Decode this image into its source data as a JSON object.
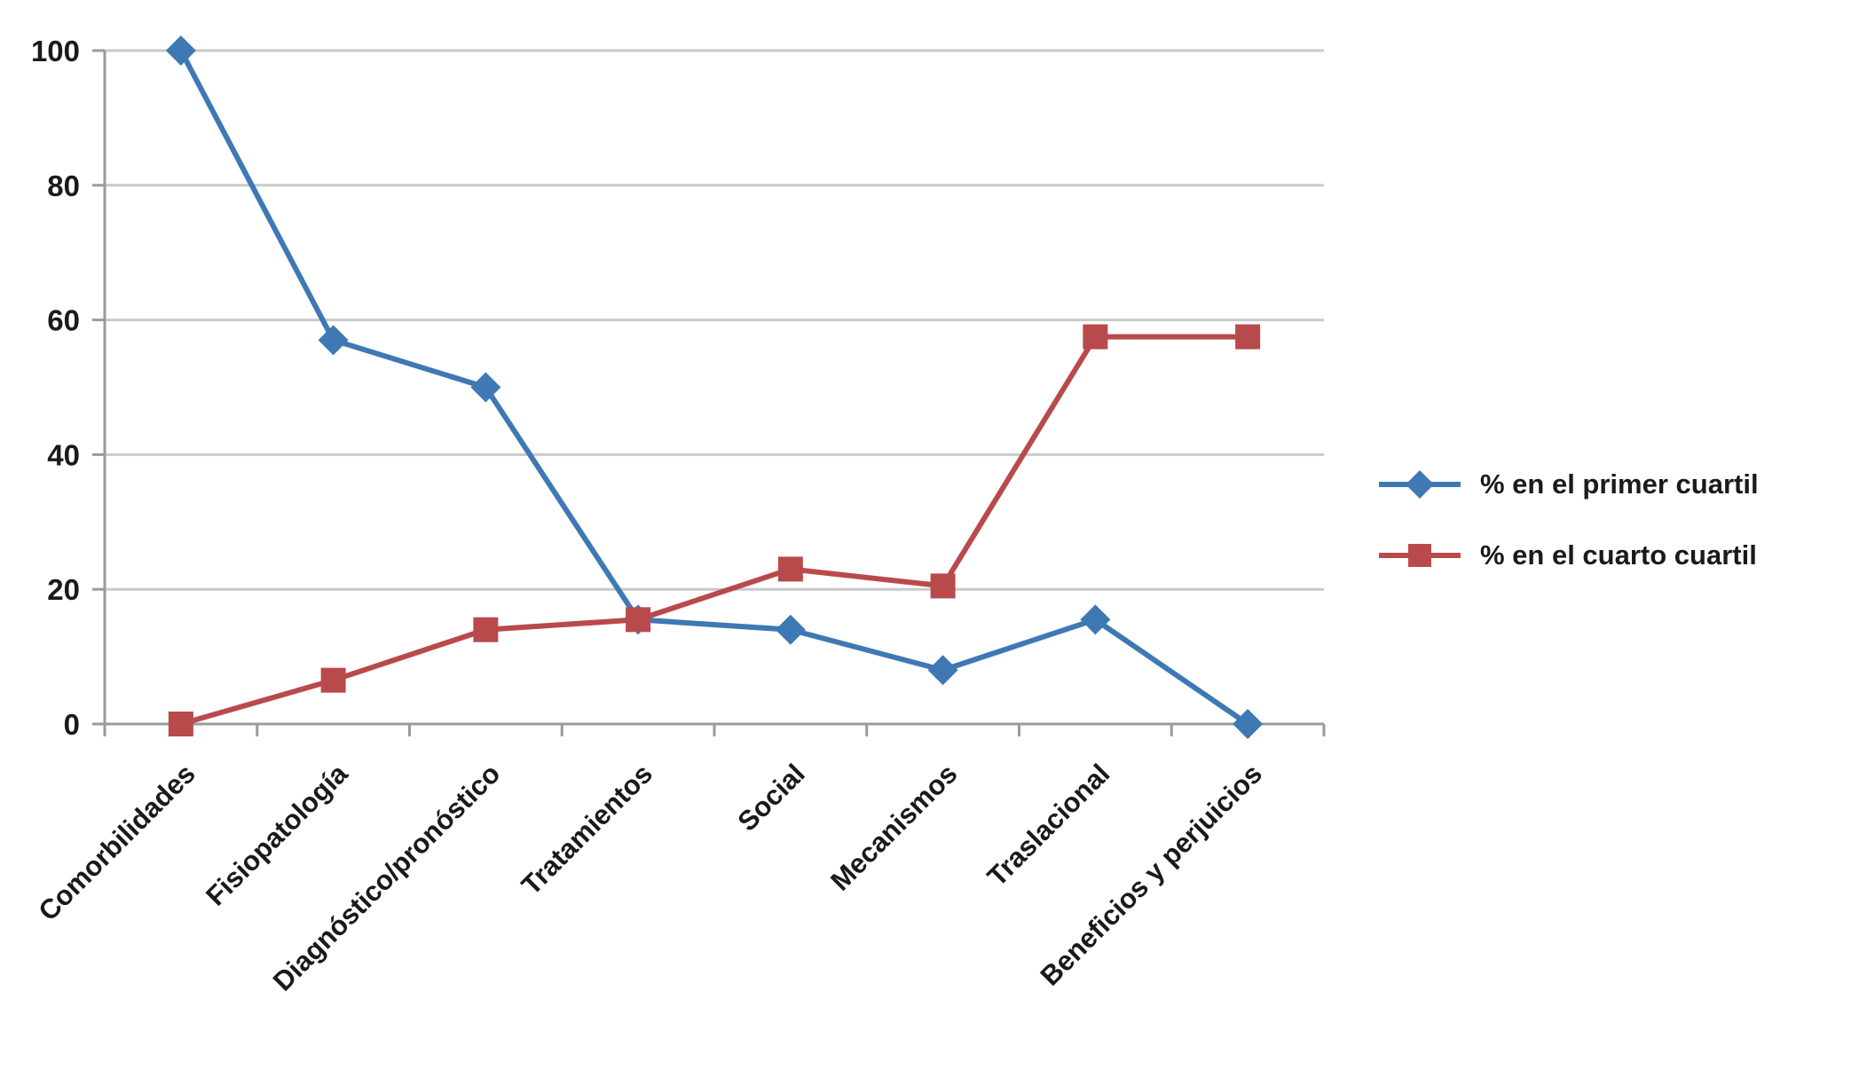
{
  "chart_data": {
    "type": "line",
    "categories": [
      "Comorbilidades",
      "Fisiopatología",
      "Diagnóstico/pronóstico",
      "Tratamientos",
      "Social",
      "Mecanismos",
      "Traslacional",
      "Beneficios y perjuicios"
    ],
    "series": [
      {
        "name": "% en el primer cuartil",
        "marker": "diamond",
        "color": "#3E79B4",
        "values": [
          100,
          57,
          50,
          15.5,
          14,
          8,
          15.5,
          0
        ]
      },
      {
        "name": "% en el cuarto cuartil",
        "marker": "square",
        "color": "#B94A4C",
        "values": [
          0,
          6.5,
          14,
          15.5,
          23,
          20.5,
          57.5,
          57.5
        ]
      }
    ],
    "ylim": [
      0,
      100
    ],
    "yticks": [
      0,
      20,
      40,
      60,
      80,
      100
    ],
    "grid": "horizontal",
    "legend_position": "right",
    "axis_color": "#9B9B9B",
    "gridline_color": "#C9C9C9"
  }
}
